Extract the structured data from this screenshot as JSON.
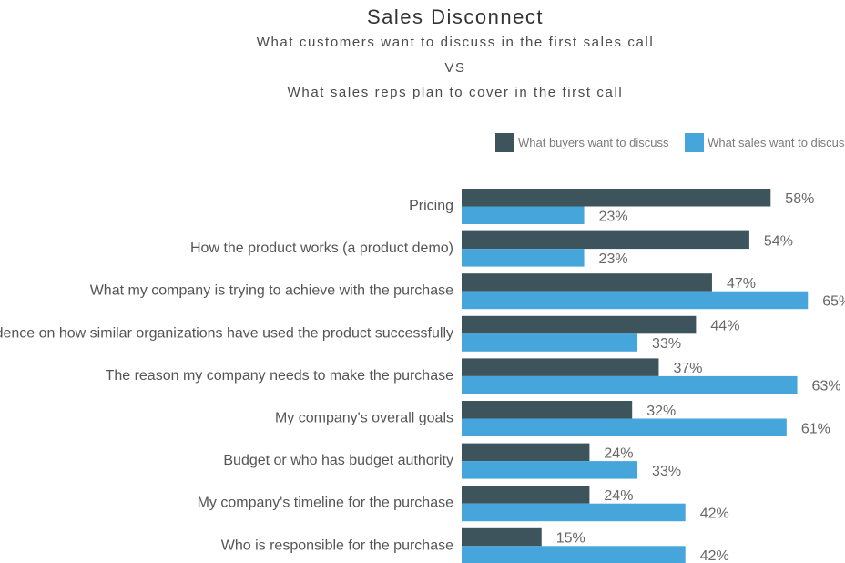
{
  "chart_data": {
    "type": "bar",
    "orientation": "horizontal",
    "title": "Sales Disconnect",
    "subtitle": [
      "What customers want to discuss in the first sales call",
      "VS",
      "What sales reps plan to cover in the first call"
    ],
    "categories": [
      "Pricing",
      "How the product works (a product demo)",
      "What my company is trying to achieve with the purchase",
      "Evidence on how similar organizations have used the product successfully",
      "The reason my company needs to make the purchase",
      "My company's overall goals",
      "Budget or who has budget authority",
      "My company's timeline for the purchase",
      "Who is responsible for the purchase"
    ],
    "series": [
      {
        "name": "What buyers want to discuss",
        "color": "#3d545c",
        "values": [
          58,
          54,
          47,
          44,
          37,
          32,
          24,
          24,
          15
        ]
      },
      {
        "name": "What sales want to discuss",
        "color": "#46a6dc",
        "values": [
          23,
          23,
          65,
          33,
          63,
          61,
          33,
          42,
          42
        ]
      }
    ],
    "value_suffix": "%",
    "xlim": [
      0,
      100
    ],
    "legend_position": "top-right",
    "grid": false
  }
}
